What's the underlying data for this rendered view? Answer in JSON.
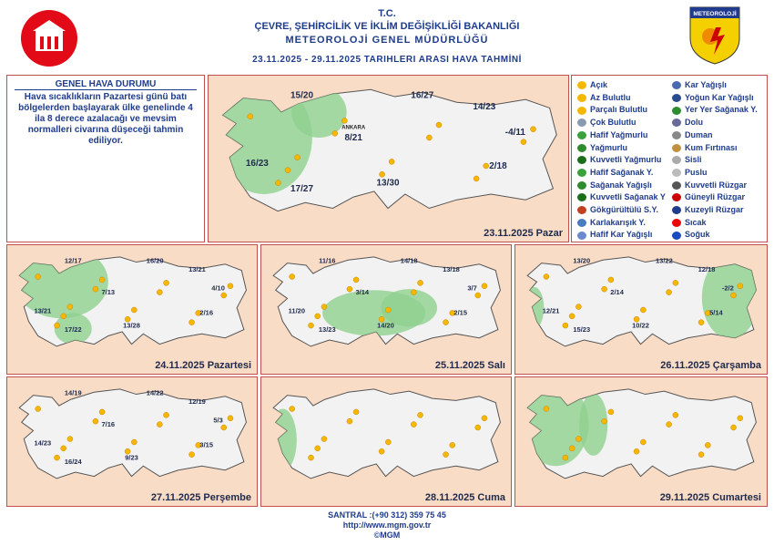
{
  "header": {
    "org": "T.C.",
    "ministry": "ÇEVRE, ŞEHİRCİLİK VE İKLİM DEĞİŞİKLİĞİ BAKANLIĞI",
    "department": "METEOROLOJİ GENEL MÜDÜRLÜĞÜ",
    "period": "23.11.2025 - 29.11.2025 TARIHLERI ARASI HAVA TAHMİNİ",
    "logo": "METEOROLOJİ"
  },
  "summary": {
    "title": "GENEL HAVA DURUMU",
    "text": "Hava sıcaklıkların Pazartesi günü batı bölgelerden başlayarak ülke genelinde 4 ila 8 derece azalacağı ve mevsim normalleri civarına düşeceği tahmin ediliyor."
  },
  "legend": [
    "Açık",
    "Az Bulutlu",
    "Parçalı Bulutlu",
    "Çok Bulutlu",
    "Hafif Yağmurlu",
    "Yağmurlu",
    "Kuvvetli Yağmurlu",
    "Hafif Sağanak Y.",
    "Sağanak Yağışlı",
    "Kuvvetli Sağanak Y",
    "Gökgürültülü S.Y.",
    "Karlakarışık Y.",
    "Hafif Kar Yağışlı",
    "Kar Yağışlı",
    "Yoğun Kar Yağışlı",
    "Yer Yer Sağanak Y.",
    "Dolu",
    "Duman",
    "Kum Fırtınası",
    "Sisli",
    "Puslu",
    "Kuvvetli Rüzgar",
    "Güneyli Rüzgar",
    "Kuzeyli Rüzgar",
    "Sıcak",
    "Soğuk"
  ],
  "maps": [
    {
      "date": "23.11.2025 Pazar",
      "city": "ANKARA",
      "temps": [
        "15/20",
        "16/27",
        "14/23",
        "8/21",
        "-4/11",
        "16/23",
        "2/18",
        "17/27",
        "13/30"
      ]
    },
    {
      "date": "24.11.2025 Pazartesi",
      "temps": [
        "12/17",
        "16/20",
        "13/21",
        "7/13",
        "4/10",
        "13/21",
        "2/16",
        "17/22",
        "13/28"
      ]
    },
    {
      "date": "25.11.2025 Salı",
      "temps": [
        "11/16",
        "14/18",
        "13/18",
        "3/14",
        "3/7",
        "11/20",
        "2/15",
        "13/23",
        "14/20"
      ]
    },
    {
      "date": "26.11.2025 Çarşamba",
      "temps": [
        "13/20",
        "13/22",
        "12/18",
        "2/14",
        "-2/2",
        "12/21",
        "5/14",
        "15/23",
        "10/22"
      ]
    },
    {
      "date": "27.11.2025 Perşembe",
      "temps": [
        "14/19",
        "14/22",
        "12/19",
        "7/16",
        "5/3",
        "14/23",
        "3/15",
        "16/24",
        "9/23"
      ]
    },
    {
      "date": "28.11.2025 Cuma"
    },
    {
      "date": "29.11.2025 Cumartesi"
    }
  ],
  "footer": {
    "phone": "SANTRAL :(+90 312) 359 75 45",
    "web": "http://www.mgm.gov.tr",
    "copyright": "©MGM"
  }
}
